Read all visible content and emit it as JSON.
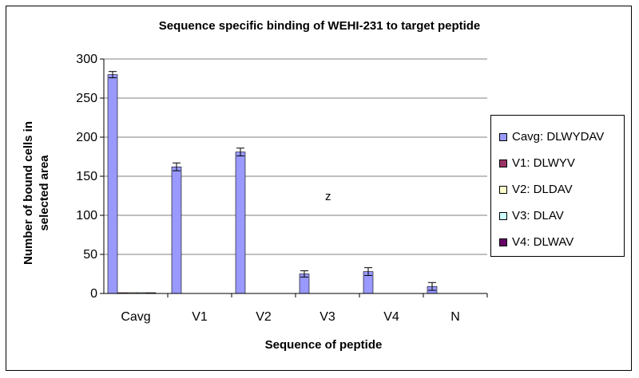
{
  "chart_data": {
    "type": "bar",
    "title": "Sequence specific binding of WEHI-231 to target peptide",
    "xlabel": "Sequence of peptide",
    "ylabel": "Number of bound cells in selected area",
    "categories": [
      "Cavg",
      "V1",
      "V2",
      "V3",
      "V4",
      "N"
    ],
    "ylim": [
      0,
      300
    ],
    "yticks": [
      0,
      50,
      100,
      150,
      200,
      250,
      300
    ],
    "grid": true,
    "legend_position": "right",
    "annotation": "z",
    "series": [
      {
        "name": "Cavg: DLWYDAV",
        "color": "#9999ff",
        "values": [
          280,
          162,
          181,
          25,
          28,
          9
        ],
        "errors": [
          4,
          5,
          5,
          4,
          5,
          5
        ]
      },
      {
        "name": "V1: DLWYV",
        "color": "#993366",
        "values": [
          1,
          0,
          0,
          0,
          0,
          0
        ],
        "errors": [
          0,
          0,
          0,
          0,
          0,
          0
        ]
      },
      {
        "name": "V2: DLDAV",
        "color": "#ffffcc",
        "values": [
          1,
          0,
          0,
          0,
          0,
          0
        ],
        "errors": [
          0,
          0,
          0,
          0,
          0,
          0
        ]
      },
      {
        "name": "V3: DLAV",
        "color": "#ccffff",
        "values": [
          1,
          0,
          0,
          0,
          0,
          0
        ],
        "errors": [
          0,
          0,
          0,
          0,
          0,
          0
        ]
      },
      {
        "name": "V4: DLWAV",
        "color": "#660066",
        "values": [
          1,
          0,
          0,
          0,
          0,
          0
        ],
        "errors": [
          0,
          0,
          0,
          0,
          0,
          0
        ]
      }
    ]
  }
}
